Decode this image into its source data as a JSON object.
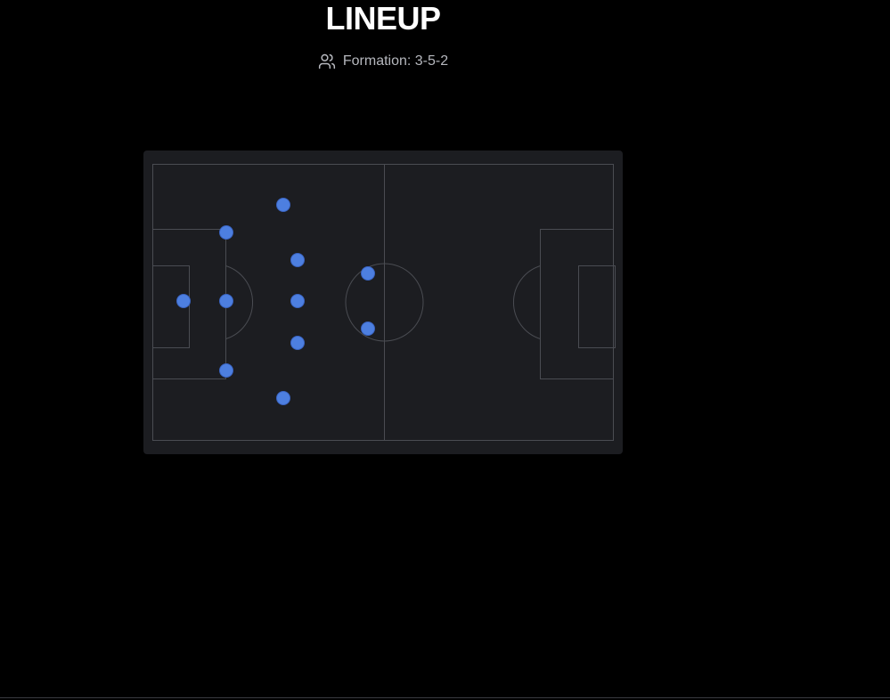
{
  "header": {
    "title": "LINEUP",
    "formation_label": "Formation: 3-5-2",
    "formation_icon": "users-icon"
  },
  "pitch": {
    "background_color": "#1c1d21",
    "line_color": "#4a4c52",
    "player_color": "#4d7fe0",
    "player_border_color": "#3a64c2"
  },
  "players": [
    {
      "role": "goalkeeper"
    },
    {
      "role": "defender"
    },
    {
      "role": "defender"
    },
    {
      "role": "defender"
    },
    {
      "role": "midfielder"
    },
    {
      "role": "midfielder"
    },
    {
      "role": "midfielder"
    },
    {
      "role": "midfielder"
    },
    {
      "role": "midfielder"
    },
    {
      "role": "forward"
    },
    {
      "role": "forward"
    }
  ]
}
